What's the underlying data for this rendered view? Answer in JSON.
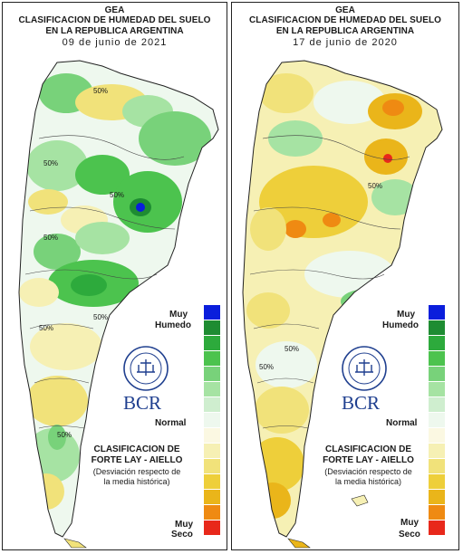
{
  "panels": [
    {
      "org": "GEA",
      "title_line1": "CLASIFICACION DE HUMEDAD DEL SUELO",
      "title_line2": "EN LA REPUBLICA ARGENTINA",
      "date": "09 de junio de 2021",
      "contour_labels": [
        "50%",
        "50%",
        "50%",
        "50%",
        "50%",
        "50%",
        "50%"
      ]
    },
    {
      "org": "GEA",
      "title_line1": "CLASIFICACION DE HUMEDAD DEL SUELO",
      "title_line2": "EN LA REPUBLICA ARGENTINA",
      "date": "17 de junio de 2020",
      "contour_labels": [
        "50%",
        "50%",
        "50%"
      ]
    }
  ],
  "legend": {
    "top_label_1": "Muy",
    "top_label_2": "Humedo",
    "middle_label": "Normal",
    "bottom_label_1": "Muy",
    "bottom_label_2": "Seco",
    "colors": [
      "#0a1edc",
      "#1e8c32",
      "#2daa3c",
      "#4cc34e",
      "#78d27a",
      "#a6e3a3",
      "#cfeecf",
      "#eef8ee",
      "#fbf8e2",
      "#f6f0b4",
      "#f1e27a",
      "#eecf3a",
      "#eab51a",
      "#ef8a12",
      "#e8281b"
    ]
  },
  "classification": {
    "line1": "CLASIFICACION DE",
    "line2": "FORTE LAY - AIELLO",
    "line3": "(Desviación respecto de",
    "line4": "la media histórica)"
  },
  "brand": {
    "logo_text": "BCR",
    "seal_icon": "bcr-seal-icon"
  }
}
